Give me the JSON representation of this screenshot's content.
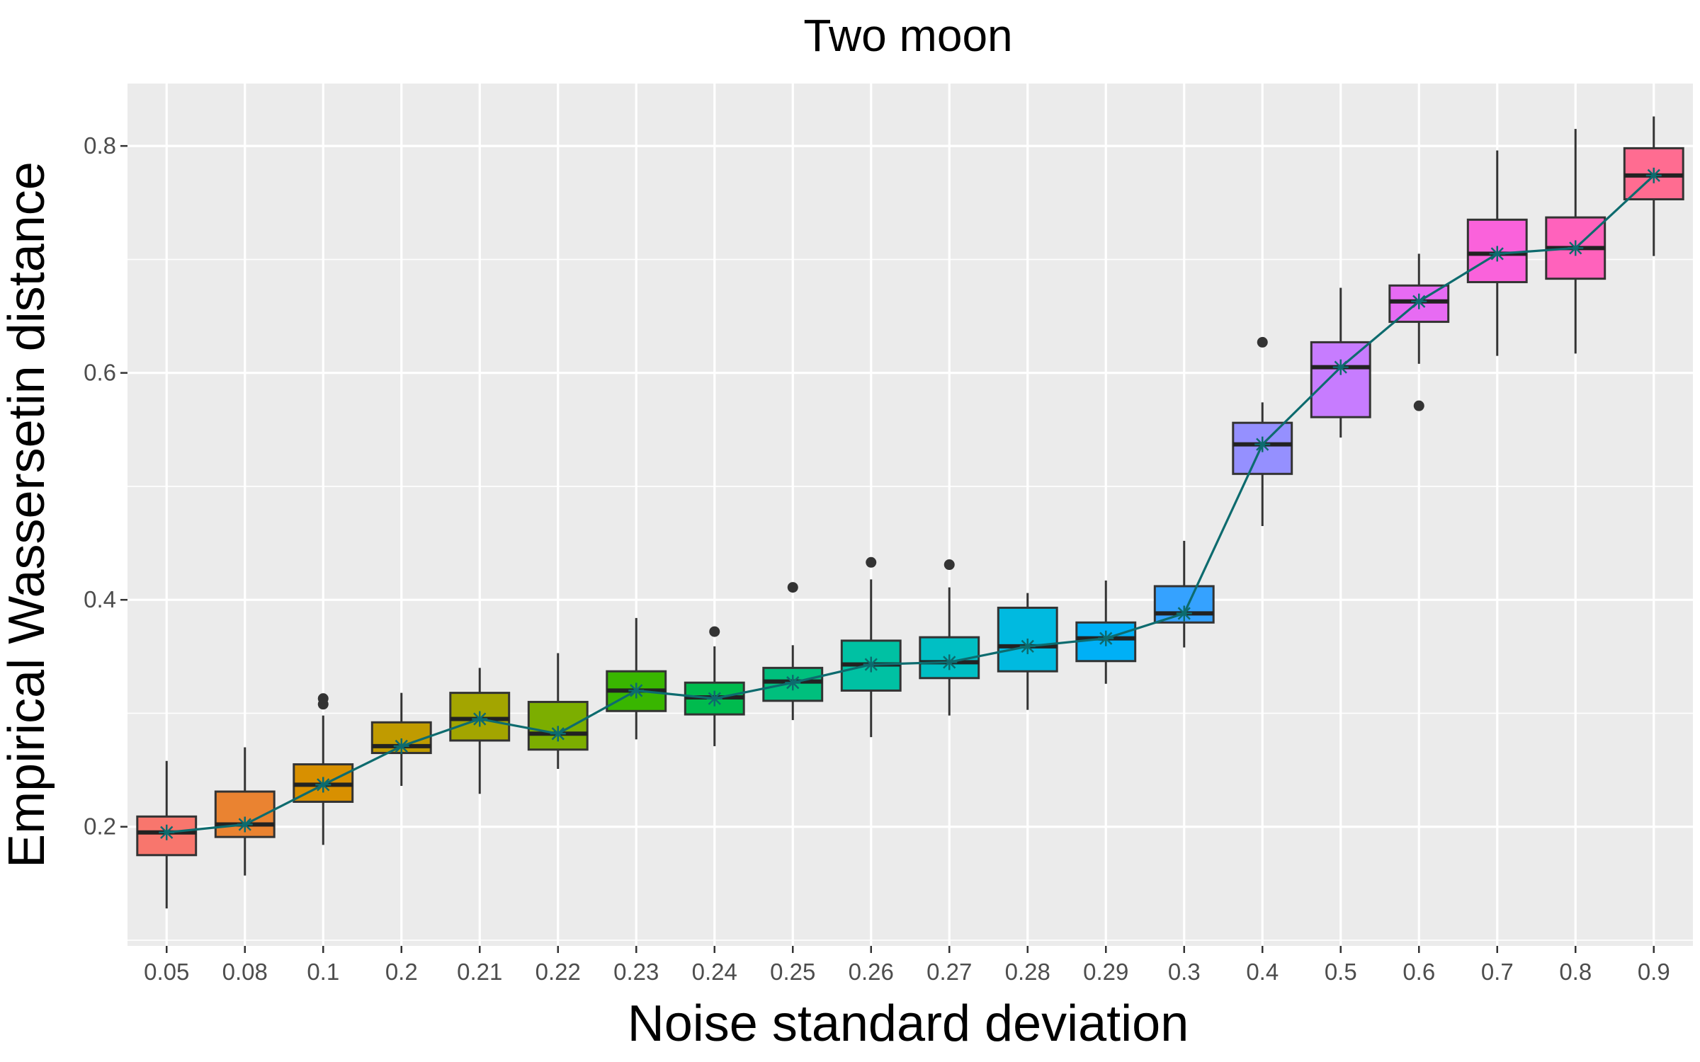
{
  "chart_data": {
    "type": "boxplot",
    "title": "Two moon",
    "xlabel": "Noise standard deviation",
    "ylabel": "Empirical Wassersetin distance",
    "ylim": [
      0.095,
      0.855
    ],
    "yticks": [
      0.2,
      0.4,
      0.6,
      0.8
    ],
    "grid": true,
    "categories": [
      "0.05",
      "0.08",
      "0.1",
      "0.2",
      "0.21",
      "0.22",
      "0.23",
      "0.24",
      "0.25",
      "0.26",
      "0.27",
      "0.28",
      "0.29",
      "0.3",
      "0.4",
      "0.5",
      "0.6",
      "0.7",
      "0.8",
      "0.9"
    ],
    "colors": [
      "#F8766D",
      "#EA8331",
      "#D89000",
      "#C09B00",
      "#A3A500",
      "#7CAE00",
      "#39B600",
      "#00BB4E",
      "#00BF7D",
      "#00C1A3",
      "#00BFC4",
      "#00BAE0",
      "#00B0F6",
      "#35A2FF",
      "#9590FF",
      "#C77CFF",
      "#E76BF3",
      "#FA62DB",
      "#FF62BC",
      "#FF6C91"
    ],
    "boxes": [
      {
        "lower": 0.128,
        "q1": 0.175,
        "median": 0.195,
        "q3": 0.209,
        "upper": 0.258,
        "outliers": []
      },
      {
        "lower": 0.157,
        "q1": 0.191,
        "median": 0.202,
        "q3": 0.231,
        "upper": 0.27,
        "outliers": []
      },
      {
        "lower": 0.184,
        "q1": 0.222,
        "median": 0.237,
        "q3": 0.255,
        "upper": 0.298,
        "outliers": [
          0.308,
          0.313
        ]
      },
      {
        "lower": 0.236,
        "q1": 0.265,
        "median": 0.271,
        "q3": 0.292,
        "upper": 0.318,
        "outliers": []
      },
      {
        "lower": 0.229,
        "q1": 0.276,
        "median": 0.295,
        "q3": 0.318,
        "upper": 0.34,
        "outliers": []
      },
      {
        "lower": 0.251,
        "q1": 0.268,
        "median": 0.282,
        "q3": 0.31,
        "upper": 0.353,
        "outliers": []
      },
      {
        "lower": 0.277,
        "q1": 0.302,
        "median": 0.32,
        "q3": 0.337,
        "upper": 0.384,
        "outliers": []
      },
      {
        "lower": 0.271,
        "q1": 0.299,
        "median": 0.314,
        "q3": 0.327,
        "upper": 0.359,
        "outliers": [
          0.372
        ]
      },
      {
        "lower": 0.294,
        "q1": 0.311,
        "median": 0.328,
        "q3": 0.34,
        "upper": 0.36,
        "outliers": [
          0.411
        ]
      },
      {
        "lower": 0.279,
        "q1": 0.32,
        "median": 0.343,
        "q3": 0.364,
        "upper": 0.418,
        "outliers": [
          0.433
        ]
      },
      {
        "lower": 0.298,
        "q1": 0.331,
        "median": 0.345,
        "q3": 0.367,
        "upper": 0.411,
        "outliers": [
          0.431
        ]
      },
      {
        "lower": 0.303,
        "q1": 0.337,
        "median": 0.359,
        "q3": 0.393,
        "upper": 0.406,
        "outliers": []
      },
      {
        "lower": 0.326,
        "q1": 0.346,
        "median": 0.366,
        "q3": 0.38,
        "upper": 0.417,
        "outliers": []
      },
      {
        "lower": 0.358,
        "q1": 0.38,
        "median": 0.388,
        "q3": 0.412,
        "upper": 0.452,
        "outliers": []
      },
      {
        "lower": 0.465,
        "q1": 0.511,
        "median": 0.537,
        "q3": 0.556,
        "upper": 0.574,
        "outliers": [
          0.627
        ]
      },
      {
        "lower": 0.543,
        "q1": 0.561,
        "median": 0.605,
        "q3": 0.627,
        "upper": 0.675,
        "outliers": []
      },
      {
        "lower": 0.608,
        "q1": 0.645,
        "median": 0.663,
        "q3": 0.677,
        "upper": 0.705,
        "outliers": [
          0.571
        ]
      },
      {
        "lower": 0.615,
        "q1": 0.68,
        "median": 0.705,
        "q3": 0.735,
        "upper": 0.796,
        "outliers": []
      },
      {
        "lower": 0.617,
        "q1": 0.683,
        "median": 0.71,
        "q3": 0.737,
        "upper": 0.815,
        "outliers": []
      },
      {
        "lower": 0.703,
        "q1": 0.753,
        "median": 0.774,
        "q3": 0.798,
        "upper": 0.826,
        "outliers": []
      }
    ],
    "mean_line": {
      "color": "#0d6b6e",
      "values": [
        0.195,
        0.202,
        0.237,
        0.271,
        0.295,
        0.282,
        0.32,
        0.313,
        0.327,
        0.343,
        0.345,
        0.359,
        0.366,
        0.388,
        0.537,
        0.605,
        0.663,
        0.705,
        0.71,
        0.774
      ]
    },
    "panel_bg": "#EBEBEB",
    "grid_color": "#FFFFFF"
  }
}
